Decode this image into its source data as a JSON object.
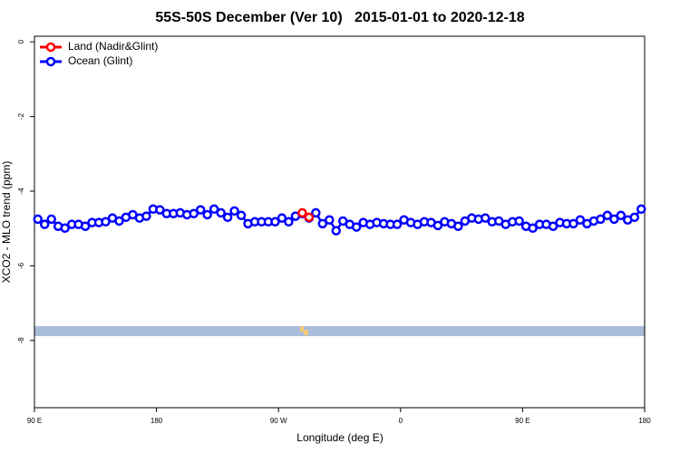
{
  "chart_data": {
    "type": "line",
    "title": "55S-50S December (Ver 10)   2015-01-01 to 2020-12-18",
    "x_label": "Longitude (deg E)",
    "y_label": "XCO2 - MLO trend (ppm)",
    "xlim": [
      90,
      540
    ],
    "ylim": [
      -9.8,
      0.15
    ],
    "xticks": [
      {
        "value": 90,
        "label": "90 E"
      },
      {
        "value": 180,
        "label": "180"
      },
      {
        "value": 270,
        "label": "90 W"
      },
      {
        "value": 360,
        "label": "0"
      },
      {
        "value": 450,
        "label": "90 E"
      },
      {
        "value": 540,
        "label": "180"
      }
    ],
    "yticks": [
      0,
      -2,
      -4,
      -6,
      -8
    ],
    "legend": "top-left",
    "series": [
      {
        "name": "Land (Nadir&Glint)",
        "color": "#ff0000",
        "x": [
          287.5,
          292.5
        ],
        "values": [
          -4.58,
          -4.7
        ]
      },
      {
        "name": "Ocean (Glint)",
        "color": "#0000ff",
        "x": [
          92.5,
          97.5,
          102.5,
          107.5,
          112.5,
          117.5,
          122.5,
          127.5,
          132.5,
          137.5,
          142.5,
          147.5,
          152.5,
          157.5,
          162.5,
          167.5,
          172.5,
          177.5,
          182.5,
          187.5,
          192.5,
          197.5,
          202.5,
          207.5,
          212.5,
          217.5,
          222.5,
          227.5,
          232.5,
          237.5,
          242.5,
          247.5,
          252.5,
          257.5,
          262.5,
          267.5,
          272.5,
          277.5,
          282.5,
          287.5,
          292.5,
          297.5,
          302.5,
          307.5,
          312.5,
          317.5,
          322.5,
          327.5,
          332.5,
          337.5,
          342.5,
          347.5,
          352.5,
          357.5,
          362.5,
          367.5,
          372.5,
          377.5,
          382.5,
          387.5,
          392.5,
          397.5,
          402.5,
          407.5,
          412.5,
          417.5,
          422.5,
          427.5,
          432.5,
          437.5,
          442.5,
          447.5,
          452.5,
          457.5,
          462.5,
          467.5,
          472.5,
          477.5,
          482.5,
          487.5,
          492.5,
          497.5,
          502.5,
          507.5,
          512.5,
          517.5,
          522.5,
          527.5,
          532.5,
          537.5
        ],
        "values": [
          -4.75,
          -4.89,
          -4.75,
          -4.94,
          -4.99,
          -4.89,
          -4.89,
          -4.94,
          -4.84,
          -4.84,
          -4.82,
          -4.72,
          -4.8,
          -4.7,
          -4.63,
          -4.72,
          -4.67,
          -4.48,
          -4.5,
          -4.6,
          -4.6,
          -4.58,
          -4.63,
          -4.6,
          -4.5,
          -4.63,
          -4.48,
          -4.58,
          -4.7,
          -4.53,
          -4.65,
          -4.87,
          -4.82,
          -4.82,
          -4.82,
          -4.82,
          -4.72,
          -4.82,
          -4.67,
          -4.6,
          -4.72,
          -4.58,
          -4.87,
          -4.77,
          -5.06,
          -4.8,
          -4.89,
          -4.96,
          -4.84,
          -4.89,
          -4.84,
          -4.87,
          -4.89,
          -4.89,
          -4.77,
          -4.84,
          -4.89,
          -4.82,
          -4.84,
          -4.92,
          -4.82,
          -4.87,
          -4.94,
          -4.8,
          -4.72,
          -4.75,
          -4.72,
          -4.82,
          -4.8,
          -4.89,
          -4.82,
          -4.8,
          -4.94,
          -4.99,
          -4.89,
          -4.89,
          -4.94,
          -4.84,
          -4.87,
          -4.87,
          -4.77,
          -4.87,
          -4.8,
          -4.75,
          -4.65,
          -4.75,
          -4.65,
          -4.77,
          -4.7,
          -4.48
        ]
      }
    ]
  }
}
